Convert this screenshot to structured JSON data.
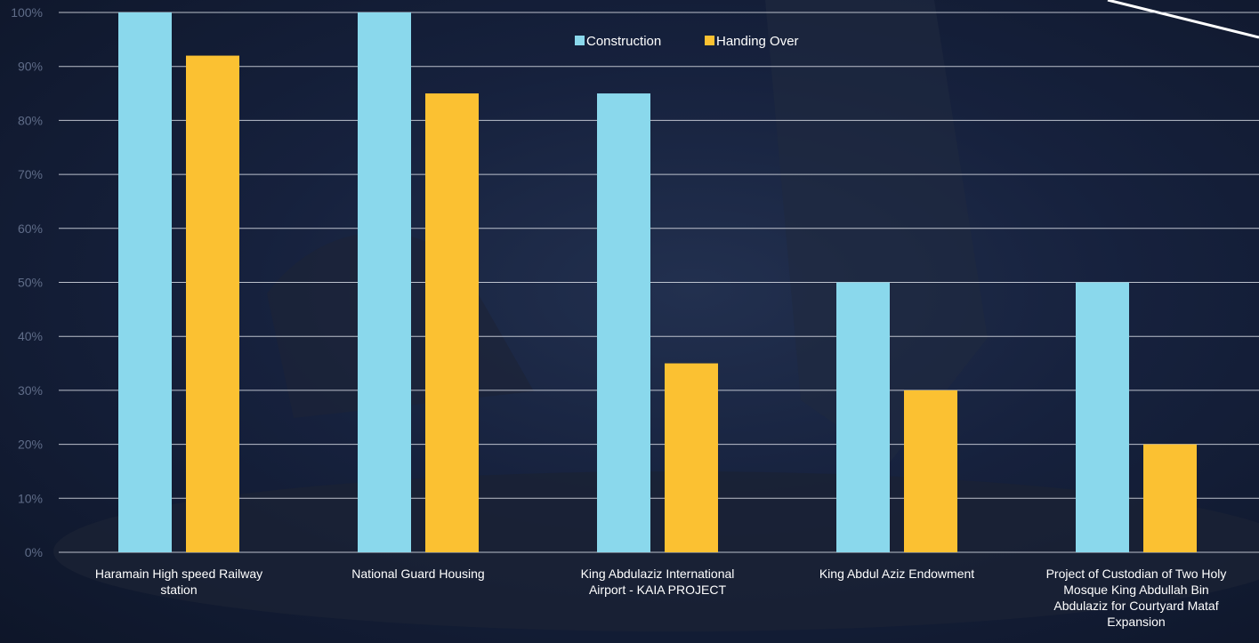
{
  "chart_data": {
    "type": "bar",
    "categories": [
      [
        "Haramain High speed Railway",
        "station"
      ],
      [
        "National Guard Housing"
      ],
      [
        "King Abdulaziz International",
        "Airport - KAIA PROJECT"
      ],
      [
        "King Abdul Aziz Endowment"
      ],
      [
        "Project of Custodian of Two Holy",
        "Mosque King Abdullah Bin",
        "Abdulaziz for Courtyard Mataf",
        "Expansion"
      ]
    ],
    "series": [
      {
        "name": "Construction",
        "color": "#8ad8ec",
        "values": [
          100,
          100,
          85,
          50,
          50
        ]
      },
      {
        "name": "Handing Over",
        "color": "#fbc132",
        "values": [
          92,
          85,
          35,
          30,
          20
        ]
      }
    ],
    "yticks": [
      "0%",
      "10%",
      "20%",
      "30%",
      "40%",
      "50%",
      "60%",
      "70%",
      "80%",
      "90%",
      "100%"
    ],
    "ylim": [
      0,
      100
    ],
    "grid": true,
    "legend": "top-center",
    "background": "#16213d"
  }
}
